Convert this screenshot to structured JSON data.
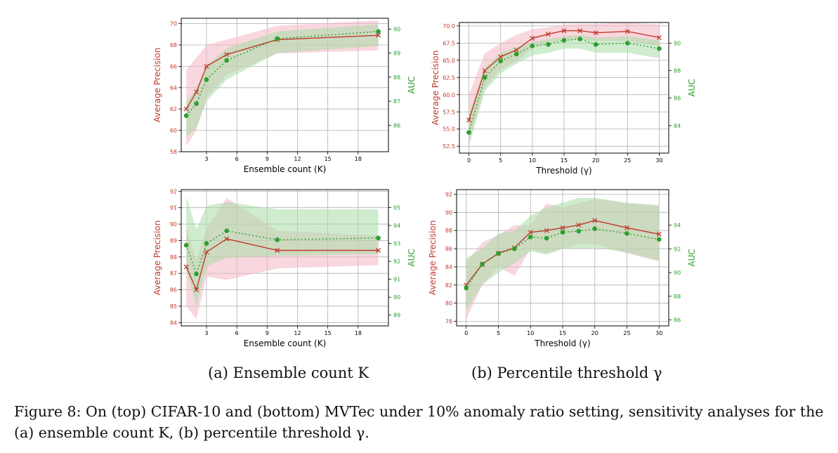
{
  "colors": {
    "precision": "#c0392b",
    "auc": "#2ca02c",
    "precision_band": "#f4b6c2",
    "auc_band": "#a8dca8",
    "grid": "#b0b0b0"
  },
  "subcaptions": {
    "a": "(a) Ensemble count K",
    "b": "(b) Percentile threshold γ"
  },
  "caption": "Figure 8: On (top) CIFAR-10 and (bottom) MVTec under 10% anomaly ratio setting, sensitivity analyses for the (a) ensemble count K, (b) percentile threshold γ.",
  "chart_data": [
    {
      "type": "line",
      "xlabel": "Ensemble count (K)",
      "ylabel_left": "Average Precision",
      "ylabel_right": "AUC",
      "xlim": [
        0.5,
        21
      ],
      "xticks": [
        3,
        6,
        9,
        12,
        15,
        18
      ],
      "ylim_left": [
        58,
        70.5
      ],
      "yticks_left": [
        58,
        60,
        62,
        64,
        66,
        68,
        70
      ],
      "ylim_right": [
        84.9,
        90.45
      ],
      "yticks_right": [
        86,
        87,
        88,
        89,
        90
      ],
      "x": [
        1,
        2,
        3,
        5,
        10,
        20
      ],
      "precision": {
        "values": [
          62.0,
          63.6,
          66.0,
          67.1,
          68.5,
          68.9
        ],
        "lower": [
          58.5,
          60.0,
          63.0,
          65.2,
          67.2,
          67.5
        ],
        "upper": [
          65.7,
          66.8,
          68.0,
          68.5,
          69.8,
          70.3
        ]
      },
      "auc": {
        "values": [
          86.4,
          86.9,
          87.9,
          88.7,
          89.6,
          89.9
        ],
        "lower": [
          85.5,
          85.9,
          87.0,
          87.9,
          89.0,
          89.3
        ],
        "upper": [
          87.0,
          87.5,
          88.5,
          89.2,
          89.9,
          90.2
        ]
      },
      "grid": true
    },
    {
      "type": "line",
      "xlabel": "Threshold (γ)",
      "ylabel_left": "Average Precision",
      "ylabel_right": "AUC",
      "xlim": [
        -1.5,
        31.5
      ],
      "xticks": [
        0,
        5,
        10,
        15,
        20,
        25,
        30
      ],
      "ylim_left": [
        51.5,
        70.5
      ],
      "yticks_left": [
        52.5,
        55.0,
        57.5,
        60.0,
        62.5,
        65.0,
        67.5,
        70.0
      ],
      "ylim_right": [
        82,
        91.5
      ],
      "yticks_right": [
        84,
        86,
        88,
        90
      ],
      "x": [
        0,
        2.5,
        5,
        7.5,
        10,
        12.5,
        15,
        17.5,
        20,
        25,
        30
      ],
      "precision": {
        "values": [
          56.3,
          63.5,
          65.5,
          66.5,
          68.2,
          68.8,
          69.3,
          69.3,
          69.0,
          69.2,
          68.3
        ],
        "lower": [
          53.0,
          61.0,
          63.7,
          64.8,
          66.8,
          67.5,
          68.0,
          68.0,
          67.8,
          67.8,
          67.0
        ],
        "upper": [
          60.0,
          66.0,
          67.5,
          68.7,
          69.5,
          69.8,
          70.2,
          70.3,
          70.3,
          70.5,
          70.2
        ]
      },
      "auc": {
        "values": [
          83.5,
          87.5,
          88.7,
          89.2,
          89.8,
          89.9,
          90.2,
          90.3,
          89.9,
          90.0,
          89.6
        ],
        "lower": [
          82.5,
          86.5,
          87.8,
          88.5,
          89.1,
          89.3,
          89.6,
          89.6,
          89.3,
          89.3,
          88.9
        ],
        "upper": [
          84.8,
          88.2,
          89.3,
          89.7,
          90.1,
          90.3,
          90.5,
          90.6,
          90.4,
          90.5,
          90.2
        ]
      },
      "grid": true
    },
    {
      "type": "line",
      "xlabel": "Ensemble count (K)",
      "ylabel_left": "Average Precision",
      "ylabel_right": "AUC",
      "xlim": [
        0.5,
        21
      ],
      "xticks": [
        3,
        6,
        9,
        12,
        15,
        18
      ],
      "ylim_left": [
        83.8,
        92.1
      ],
      "yticks_left": [
        84,
        85,
        86,
        87,
        88,
        89,
        90,
        91,
        92
      ],
      "ylim_right": [
        88.4,
        96.0
      ],
      "yticks_right": [
        89,
        90,
        91,
        92,
        93,
        94,
        95
      ],
      "x": [
        1,
        2,
        3,
        5,
        10,
        20
      ],
      "precision": {
        "values": [
          87.4,
          86.0,
          88.3,
          89.1,
          88.4,
          88.4
        ],
        "lower": [
          85.0,
          84.2,
          86.8,
          86.6,
          87.3,
          87.5
        ],
        "upper": [
          89.8,
          87.8,
          89.7,
          91.6,
          89.6,
          89.3
        ]
      },
      "auc": {
        "values": [
          92.9,
          91.3,
          93.0,
          93.7,
          93.2,
          93.3
        ],
        "lower": [
          91.5,
          89.5,
          91.7,
          92.2,
          92.3,
          92.4
        ],
        "upper": [
          95.6,
          93.8,
          95.1,
          95.3,
          94.9,
          94.9
        ]
      },
      "grid": true
    },
    {
      "type": "line",
      "xlabel": "Threshold (γ)",
      "ylabel_left": "Average Precision",
      "ylabel_right": "AUC",
      "xlim": [
        -1.5,
        31.5
      ],
      "xticks": [
        0,
        5,
        10,
        15,
        20,
        25,
        30
      ],
      "ylim_left": [
        77.5,
        92.5
      ],
      "yticks_left": [
        78,
        80,
        82,
        84,
        86,
        88,
        90,
        92
      ],
      "ylim_right": [
        85.5,
        97.0
      ],
      "yticks_right": [
        86,
        88,
        90,
        92,
        94
      ],
      "x": [
        0,
        2.5,
        5,
        7.5,
        10,
        12.5,
        15,
        17.5,
        20,
        25,
        30
      ],
      "precision": {
        "values": [
          82.0,
          84.3,
          85.5,
          86.1,
          87.8,
          88.0,
          88.3,
          88.6,
          89.1,
          88.3,
          87.6
        ],
        "lower": [
          78.2,
          82.0,
          84.0,
          83.0,
          86.0,
          85.5,
          86.0,
          86.5,
          86.5,
          85.5,
          84.6
        ],
        "upper": [
          84.5,
          86.7,
          87.5,
          88.6,
          88.6,
          91.0,
          90.5,
          91.0,
          91.5,
          91.0,
          90.7
        ]
      },
      "auc": {
        "values": [
          88.7,
          90.7,
          91.6,
          92.0,
          93.0,
          92.9,
          93.4,
          93.5,
          93.7,
          93.3,
          92.8
        ],
        "lower": [
          86.8,
          89.0,
          90.0,
          90.8,
          91.8,
          91.5,
          92.0,
          92.0,
          92.1,
          91.7,
          91.0
        ],
        "upper": [
          91.2,
          92.0,
          93.3,
          93.5,
          94.8,
          95.5,
          95.9,
          96.3,
          96.3,
          95.9,
          95.7
        ]
      },
      "grid": true
    }
  ]
}
